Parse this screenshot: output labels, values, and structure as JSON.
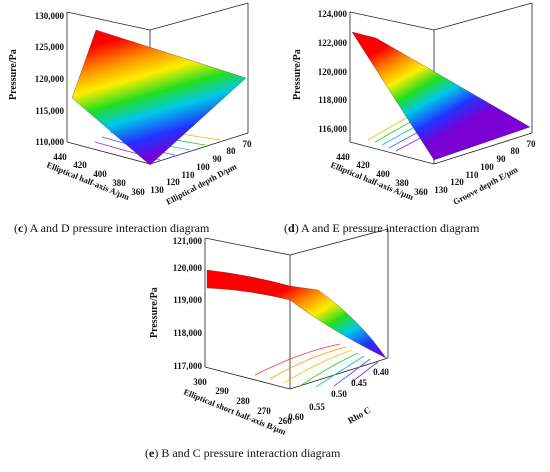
{
  "chart_data": [
    {
      "id": "c",
      "type": "surface3d",
      "caption_letter": "c",
      "caption_text": " A and D pressure interaction diagram",
      "zlabel": "Pressure/Pa",
      "xlabel": "Elliptical half-axis A/μm",
      "ylabel": "Elliptical depth D/μm",
      "x_ticks": [
        "440",
        "420",
        "400",
        "380",
        "360"
      ],
      "y_ticks": [
        "130",
        "120",
        "110",
        "100",
        "90",
        "80",
        "70"
      ],
      "z_ticks": [
        "110,000",
        "115,000",
        "120,000",
        "125,000",
        "130,000"
      ],
      "zlim": [
        110000,
        130000
      ],
      "corners": {
        "x440_y130": 117500,
        "x360_y130": 111200,
        "x440_y70": 130000,
        "x360_y70": 121500
      }
    },
    {
      "id": "d",
      "type": "surface3d",
      "caption_letter": "d",
      "caption_text": " A and E pressure interaction diagram",
      "zlabel": "Pressure/Pa",
      "xlabel": "Elliptical half-axis A/μm",
      "ylabel": "Groove depth E/μm",
      "x_ticks": [
        "440",
        "420",
        "400",
        "380",
        "360"
      ],
      "y_ticks": [
        "130",
        "120",
        "110",
        "100",
        "90",
        "80",
        "70"
      ],
      "z_ticks": [
        "116,000",
        "118,000",
        "120,000",
        "122,000",
        "124,000"
      ],
      "zlim": [
        115000,
        124000
      ],
      "corners": {
        "x440_y130": 122800,
        "x360_y130": 122600,
        "x440_y70": 116200,
        "x360_y70": 115500
      }
    },
    {
      "id": "e",
      "type": "surface3d",
      "caption_letter": "e",
      "caption_text": " B and C pressure interaction diagram",
      "zlabel": "Pressure/Pa",
      "xlabel": "Elliptical short half-axis B/μm",
      "ylabel": "Rho C",
      "x_ticks": [
        "300",
        "290",
        "280",
        "270",
        "260"
      ],
      "y_ticks": [
        "0.60",
        "0.55",
        "0.50",
        "0.45",
        "0.40"
      ],
      "z_ticks": [
        "117,000",
        "118,000",
        "119,000",
        "120,000",
        "121,000"
      ],
      "zlim": [
        117000,
        121000
      ],
      "corners": {
        "x300_y060": 120300,
        "x260_y060": 119600,
        "x300_y040": 119900,
        "x260_y040": 117300
      }
    }
  ]
}
